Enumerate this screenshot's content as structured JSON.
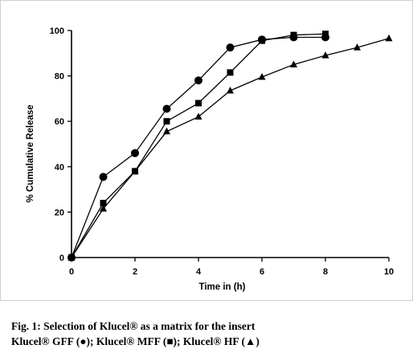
{
  "caption": {
    "line1": "Fig. 1: Selection of Klucel® as a matrix for the insert",
    "line2": "Klucel® GFF (●); Klucel® MFF (■); Klucel® HF (▲)"
  },
  "chart_data": {
    "type": "line",
    "xlabel": "Time in (h)",
    "ylabel": "% Cumulative Release",
    "xlim": [
      0,
      10
    ],
    "ylim": [
      0,
      100
    ],
    "xticks": [
      0,
      2,
      4,
      6,
      8,
      10
    ],
    "yticks": [
      0,
      20,
      40,
      60,
      80,
      100
    ],
    "grid": false,
    "series": [
      {
        "name": "Klucel® GFF",
        "marker": "circle",
        "x": [
          0,
          1,
          2,
          3,
          4,
          5,
          6,
          7,
          8
        ],
        "y": [
          0,
          35.5,
          46,
          65.5,
          78,
          92.5,
          96,
          97,
          97
        ]
      },
      {
        "name": "Klucel® MFF",
        "marker": "square",
        "x": [
          0,
          1,
          2,
          3,
          4,
          5,
          6,
          7,
          8
        ],
        "y": [
          0,
          24,
          38,
          60,
          68,
          81.5,
          95.5,
          98,
          98.5
        ]
      },
      {
        "name": "Klucel® HF",
        "marker": "triangle",
        "x": [
          0,
          1,
          2,
          3,
          4,
          5,
          6,
          7,
          8,
          9,
          10
        ],
        "y": [
          0,
          21.5,
          38,
          55.5,
          62,
          73.5,
          79.5,
          85,
          89,
          92.5,
          96.5
        ]
      }
    ]
  }
}
